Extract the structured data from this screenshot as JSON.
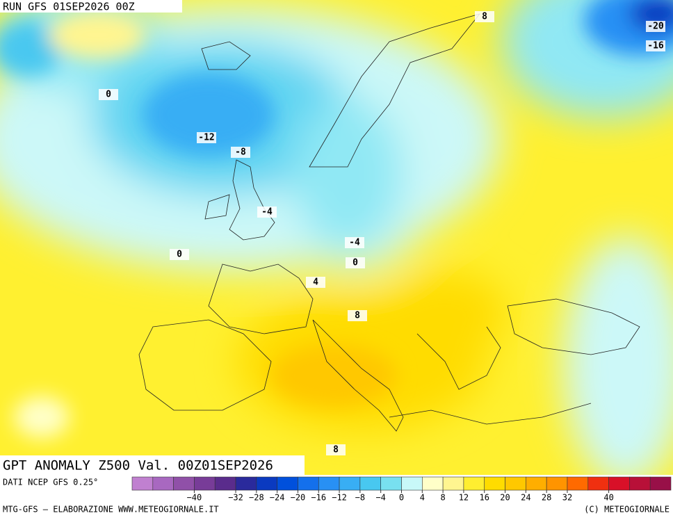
{
  "header": {
    "run": "RUN GFS 01SEP2026 00Z"
  },
  "map": {
    "title": "GPT ANOMALY Z500 Val. 00Z01SEP2026",
    "contour_labels": [
      8,
      -20,
      -16,
      0,
      -12,
      -8,
      -4,
      0,
      -4,
      0,
      4,
      8,
      8
    ]
  },
  "footer": {
    "source": "DATI NCEP GFS 0.25°",
    "credit": "MTG-GFS — ELABORAZIONE WWW.METEOGIORNALE.IT",
    "copyright": "(C) METEOGIORNALE"
  },
  "colorbar": {
    "colors": [
      "#c080d0",
      "#a868c0",
      "#9050a8",
      "#783c98",
      "#5a2c8c",
      "#2a2a9c",
      "#0a3ac0",
      "#0050dc",
      "#1470ec",
      "#2890f4",
      "#38aef4",
      "#48c8f0",
      "#78e0f0",
      "#c8f8f8",
      "#ffffc8",
      "#fff590",
      "#ffee30",
      "#ffdc00",
      "#ffc800",
      "#ffae00",
      "#ff9400",
      "#ff6a00",
      "#f03010",
      "#d81028",
      "#b81038",
      "#981048"
    ],
    "ticks": [
      {
        "value": -40,
        "label": "−40"
      },
      {
        "value": -32,
        "label": "−32"
      },
      {
        "value": -28,
        "label": "−28"
      },
      {
        "value": -24,
        "label": "−24"
      },
      {
        "value": -20,
        "label": "−20"
      },
      {
        "value": -16,
        "label": "−16"
      },
      {
        "value": -12,
        "label": "−12"
      },
      {
        "value": -8,
        "label": "−8"
      },
      {
        "value": -4,
        "label": "−4"
      },
      0,
      4,
      8,
      12,
      16,
      20,
      24,
      28,
      32,
      40
    ],
    "range": [
      -52,
      52
    ]
  }
}
